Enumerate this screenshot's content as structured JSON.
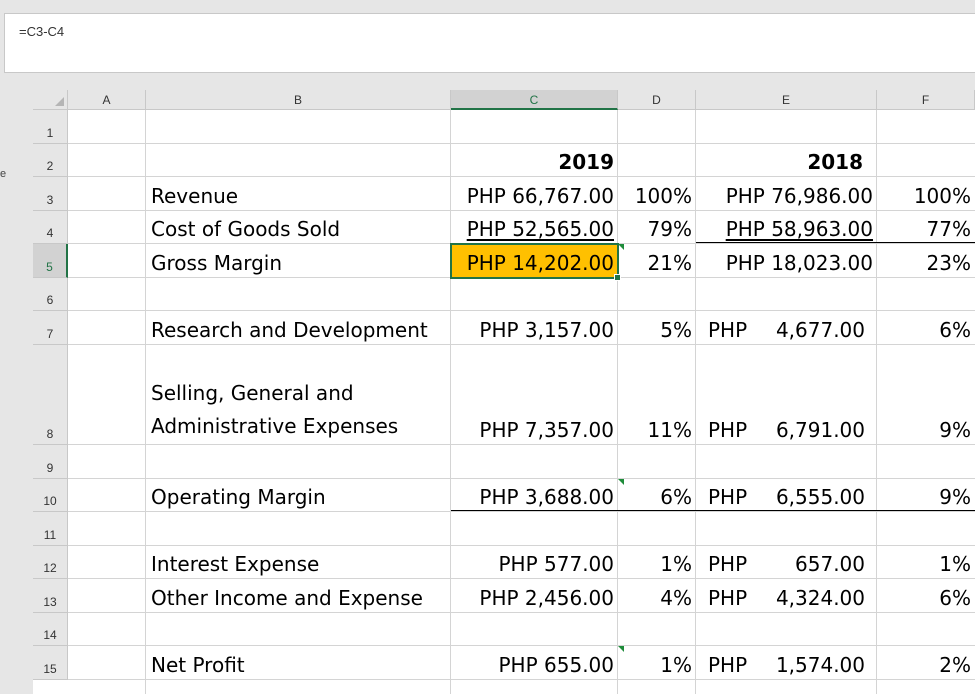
{
  "formula_bar": {
    "formula": "=C3-C4"
  },
  "stray_char": "e",
  "columns": [
    "A",
    "B",
    "C",
    "D",
    "E",
    "F"
  ],
  "rows": [
    "1",
    "2",
    "3",
    "4",
    "5",
    "6",
    "7",
    "8",
    "9",
    "10",
    "11",
    "12",
    "13",
    "14",
    "15"
  ],
  "headers": {
    "y2019": "2019",
    "y2018": "2018"
  },
  "lines": [
    {
      "label": "Revenue",
      "c": "PHP 66,767.00",
      "d": "100%",
      "e": "PHP 76,986.00",
      "f": "100%"
    },
    {
      "label": "Cost of Goods Sold",
      "c": "PHP 52,565.00",
      "d": "79%",
      "e": "PHP 58,963.00",
      "f": "77%"
    },
    {
      "label": "Gross Margin",
      "c": "PHP 14,202.00",
      "d": "21%",
      "e": "PHP 18,023.00",
      "f": "23%"
    },
    {
      "label": "Research and Development",
      "c": "PHP 3,157.00",
      "d": "5%",
      "e_cur": "PHP",
      "e_val": "4,677.00",
      "f": "6%"
    },
    {
      "label": "Selling, General and Administrative Expenses",
      "label_line1": "Selling, General and",
      "label_line2": "Administrative Expenses",
      "c": "PHP 7,357.00",
      "d": "11%",
      "e_cur": "PHP",
      "e_val": "6,791.00",
      "f": "9%"
    },
    {
      "label": "Operating Margin",
      "c": "PHP 3,688.00",
      "d": "6%",
      "e_cur": "PHP",
      "e_val": "6,555.00",
      "f": "9%"
    },
    {
      "label": "Interest Expense",
      "c": "PHP 577.00",
      "d": "1%",
      "e_cur": "PHP",
      "e_val": "657.00",
      "f": "1%"
    },
    {
      "label": "Other Income and Expense",
      "c": "PHP 2,456.00",
      "d": "4%",
      "e_cur": "PHP",
      "e_val": "4,324.00",
      "f": "6%"
    },
    {
      "label": "Net Profit",
      "c": "PHP 655.00",
      "d": "1%",
      "e_cur": "PHP",
      "e_val": "1,574.00",
      "f": "2%"
    }
  ],
  "selected_cell": "C5",
  "colors": {
    "selection": "#217346",
    "highlight_fill": "#ffc000"
  }
}
